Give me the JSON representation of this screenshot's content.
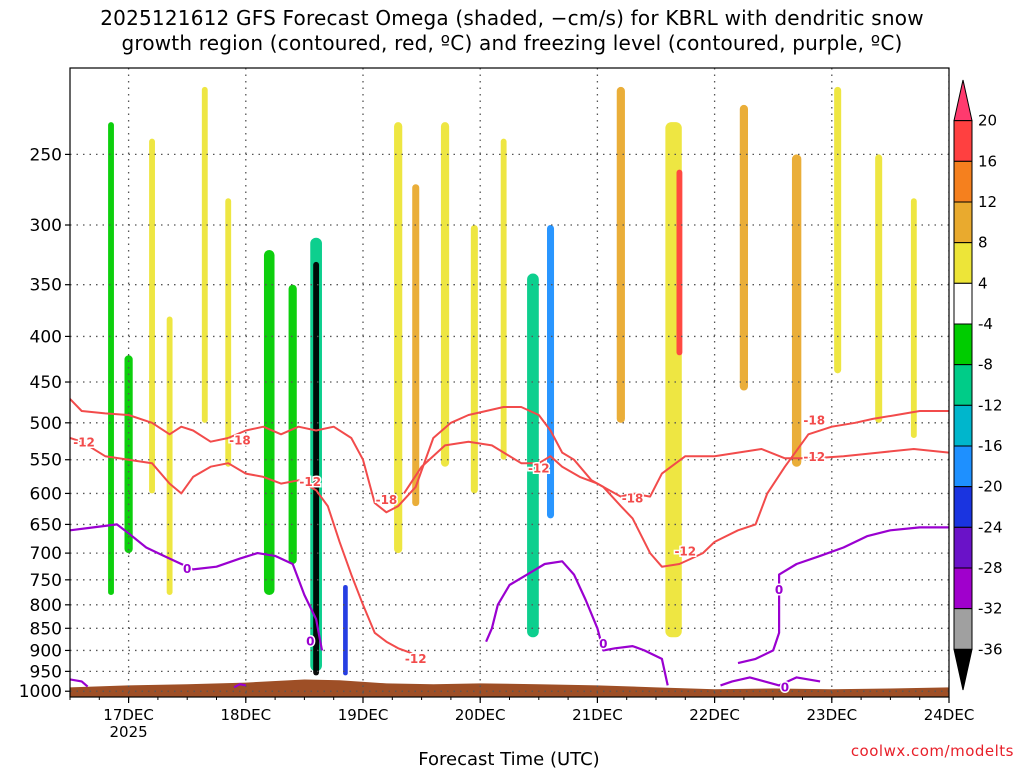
{
  "title_line1": "2025121612 GFS Forecast Omega (shaded, −cm/s) for KBRL with dendritic snow",
  "title_line2": "growth region (contoured, red, ºC) and freezing level (contoured, purple, ºC)",
  "credit": "coolwx.com/modelts",
  "chart_data": {
    "type": "heatmap",
    "title": "2025121612 GFS Forecast Omega (shaded, −cm/s) for KBRL with dendritic snow growth region (contoured, red, ºC) and freezing level (contoured, purple, ºC)",
    "xlabel": "Forecast Time (UTC)",
    "ylabel": "",
    "x_ticks": [
      "17DEC",
      "18DEC",
      "19DEC",
      "20DEC",
      "21DEC",
      "22DEC",
      "23DEC",
      "24DEC"
    ],
    "x_year_label": "2025",
    "x_range_days": [
      16.5,
      24.0
    ],
    "y_ticks": [
      250,
      300,
      350,
      400,
      450,
      500,
      550,
      600,
      650,
      700,
      750,
      800,
      850,
      900,
      950,
      1000
    ],
    "y_range_hpa": [
      200,
      1015
    ],
    "y_scale": "pressure",
    "colorbar": {
      "labels": [
        "20",
        "16",
        "12",
        "8",
        "4",
        "-4",
        "-8",
        "-12",
        "-16",
        "-20",
        "-24",
        "-28",
        "-32",
        "-36"
      ],
      "colors": [
        "#ff3a6e",
        "#ff4040",
        "#f5801e",
        "#e9aa2e",
        "#ede538",
        "#ffffff",
        "#00cc00",
        "#00cc88",
        "#00b6cc",
        "#1e90ff",
        "#1a34e0",
        "#6a12c8",
        "#a000cc",
        "#a0a0a0",
        "#000000"
      ]
    },
    "contour_labels_red": [
      {
        "text": "-12",
        "x": 16.62,
        "p": 525
      },
      {
        "text": "-18",
        "x": 17.95,
        "p": 522
      },
      {
        "text": "-12",
        "x": 18.55,
        "p": 581
      },
      {
        "text": "-18",
        "x": 19.2,
        "p": 609
      },
      {
        "text": "-12",
        "x": 19.45,
        "p": 918
      },
      {
        "text": "-12",
        "x": 20.5,
        "p": 561
      },
      {
        "text": "-18",
        "x": 21.3,
        "p": 606
      },
      {
        "text": "-12",
        "x": 21.75,
        "p": 695
      },
      {
        "text": "-18",
        "x": 22.85,
        "p": 496
      },
      {
        "text": "-12",
        "x": 22.85,
        "p": 545
      }
    ],
    "contour_labels_purple": [
      {
        "text": "0",
        "x": 17.5,
        "p": 727
      },
      {
        "text": "0",
        "x": 18.55,
        "p": 877
      },
      {
        "text": "0",
        "x": 21.05,
        "p": 883
      },
      {
        "text": "0",
        "x": 22.55,
        "p": 768
      },
      {
        "text": "0",
        "x": 22.6,
        "p": 988
      }
    ],
    "red_contours": [
      [
        [
          16.5,
          470
        ],
        [
          16.6,
          485
        ],
        [
          16.8,
          488
        ],
        [
          17.0,
          490
        ],
        [
          17.2,
          500
        ],
        [
          17.35,
          515
        ],
        [
          17.45,
          505
        ],
        [
          17.55,
          510
        ],
        [
          17.7,
          525
        ],
        [
          17.85,
          520
        ],
        [
          18.0,
          510
        ],
        [
          18.15,
          505
        ],
        [
          18.3,
          515
        ],
        [
          18.45,
          505
        ],
        [
          18.6,
          510
        ],
        [
          18.75,
          505
        ],
        [
          18.9,
          520
        ],
        [
          19.0,
          550
        ],
        [
          19.1,
          615
        ],
        [
          19.2,
          630
        ],
        [
          19.3,
          620
        ],
        [
          19.45,
          590
        ],
        [
          19.6,
          520
        ],
        [
          19.75,
          500
        ],
        [
          19.9,
          490
        ],
        [
          20.05,
          485
        ],
        [
          20.2,
          480
        ],
        [
          20.35,
          480
        ],
        [
          20.5,
          490
        ],
        [
          20.6,
          510
        ],
        [
          20.7,
          540
        ],
        [
          20.8,
          550
        ],
        [
          20.95,
          580
        ],
        [
          21.05,
          590
        ],
        [
          21.2,
          620
        ],
        [
          21.3,
          640
        ],
        [
          21.45,
          700
        ],
        [
          21.55,
          725
        ],
        [
          21.7,
          720
        ],
        [
          21.8,
          710
        ],
        [
          21.9,
          700
        ],
        [
          22.0,
          680
        ],
        [
          22.2,
          660
        ],
        [
          22.35,
          650
        ],
        [
          22.45,
          600
        ],
        [
          22.6,
          560
        ],
        [
          22.8,
          515
        ],
        [
          23.0,
          505
        ],
        [
          23.2,
          500
        ],
        [
          23.35,
          495
        ],
        [
          23.55,
          490
        ],
        [
          23.75,
          485
        ],
        [
          24.0,
          485
        ]
      ],
      [
        [
          16.5,
          520
        ],
        [
          16.6,
          525
        ],
        [
          16.8,
          545
        ],
        [
          17.0,
          550
        ],
        [
          17.2,
          555
        ],
        [
          17.35,
          585
        ],
        [
          17.45,
          600
        ],
        [
          17.55,
          575
        ],
        [
          17.7,
          560
        ],
        [
          17.85,
          555
        ],
        [
          18.0,
          570
        ],
        [
          18.15,
          575
        ],
        [
          18.3,
          585
        ],
        [
          18.45,
          580
        ],
        [
          18.6,
          595
        ],
        [
          18.7,
          620
        ],
        [
          18.8,
          680
        ],
        [
          18.9,
          740
        ],
        [
          19.0,
          800
        ],
        [
          19.1,
          860
        ],
        [
          19.2,
          880
        ],
        [
          19.3,
          895
        ],
        [
          19.45,
          910
        ]
      ],
      [
        [
          19.35,
          600
        ],
        [
          19.5,
          560
        ],
        [
          19.7,
          530
        ],
        [
          19.9,
          525
        ],
        [
          20.1,
          530
        ],
        [
          20.35,
          555
        ],
        [
          20.5,
          555
        ],
        [
          20.6,
          545
        ],
        [
          20.7,
          560
        ],
        [
          20.85,
          575
        ],
        [
          21.0,
          585
        ],
        [
          21.2,
          605
        ],
        [
          21.3,
          600
        ],
        [
          21.45,
          605
        ],
        [
          21.55,
          570
        ],
        [
          21.75,
          545
        ],
        [
          22.0,
          545
        ],
        [
          22.2,
          540
        ],
        [
          22.4,
          535
        ],
        [
          22.6,
          548
        ],
        [
          22.85,
          548
        ],
        [
          23.1,
          545
        ],
        [
          23.4,
          540
        ],
        [
          23.7,
          535
        ],
        [
          24.0,
          540
        ]
      ]
    ],
    "purple_contours": [
      [
        [
          16.5,
          660
        ],
        [
          16.7,
          655
        ],
        [
          16.9,
          650
        ],
        [
          17.0,
          665
        ],
        [
          17.15,
          690
        ],
        [
          17.3,
          705
        ],
        [
          17.45,
          720
        ],
        [
          17.55,
          730
        ],
        [
          17.75,
          725
        ],
        [
          17.95,
          710
        ],
        [
          18.1,
          700
        ],
        [
          18.25,
          705
        ],
        [
          18.4,
          720
        ],
        [
          18.5,
          780
        ],
        [
          18.6,
          830
        ],
        [
          18.65,
          900
        ]
      ],
      [
        [
          20.05,
          880
        ],
        [
          20.1,
          850
        ],
        [
          20.15,
          800
        ],
        [
          20.25,
          760
        ],
        [
          20.4,
          740
        ],
        [
          20.55,
          720
        ],
        [
          20.7,
          715
        ],
        [
          20.8,
          740
        ],
        [
          20.9,
          790
        ],
        [
          21.0,
          850
        ],
        [
          21.05,
          900
        ],
        [
          21.15,
          895
        ],
        [
          21.3,
          890
        ],
        [
          21.4,
          900
        ],
        [
          21.55,
          920
        ],
        [
          21.6,
          985
        ]
      ],
      [
        [
          22.05,
          985
        ],
        [
          22.15,
          975
        ],
        [
          22.3,
          965
        ],
        [
          22.55,
          985
        ],
        [
          22.7,
          965
        ],
        [
          22.9,
          975
        ]
      ],
      [
        [
          22.2,
          930
        ],
        [
          22.35,
          920
        ],
        [
          22.5,
          900
        ],
        [
          22.55,
          860
        ],
        [
          22.55,
          790
        ],
        [
          22.55,
          740
        ],
        [
          22.7,
          720
        ],
        [
          22.9,
          705
        ],
        [
          23.1,
          690
        ],
        [
          23.3,
          670
        ],
        [
          23.5,
          660
        ],
        [
          23.75,
          655
        ],
        [
          24.0,
          655
        ]
      ],
      [
        [
          16.5,
          970
        ],
        [
          16.6,
          975
        ],
        [
          16.65,
          988
        ]
      ],
      [
        [
          17.9,
          990
        ],
        [
          17.95,
          982
        ],
        [
          18.0,
          985
        ]
      ]
    ],
    "omega_patches": [
      {
        "x": 16.85,
        "p0": 230,
        "p1": 780,
        "value": -6,
        "w": 0.05
      },
      {
        "x": 17.0,
        "p0": 420,
        "p1": 700,
        "value": -6,
        "w": 0.07
      },
      {
        "x": 17.2,
        "p0": 240,
        "p1": 600,
        "value": 6,
        "w": 0.05
      },
      {
        "x": 17.35,
        "p0": 380,
        "p1": 780,
        "value": 6,
        "w": 0.05
      },
      {
        "x": 17.65,
        "p0": 210,
        "p1": 500,
        "value": 6,
        "w": 0.05
      },
      {
        "x": 17.85,
        "p0": 280,
        "p1": 560,
        "value": 6,
        "w": 0.05
      },
      {
        "x": 18.2,
        "p0": 320,
        "p1": 780,
        "value": -6,
        "w": 0.09
      },
      {
        "x": 18.4,
        "p0": 350,
        "p1": 720,
        "value": -6,
        "w": 0.07
      },
      {
        "x": 18.6,
        "p0": 310,
        "p1": 950,
        "value": -10,
        "w": 0.1
      },
      {
        "x": 18.6,
        "p0": 330,
        "p1": 960,
        "value": -40,
        "w": 0.05
      },
      {
        "x": 18.85,
        "p0": 760,
        "p1": 960,
        "value": -20,
        "w": 0.04
      },
      {
        "x": 19.3,
        "p0": 230,
        "p1": 700,
        "value": 6,
        "w": 0.07
      },
      {
        "x": 19.45,
        "p0": 270,
        "p1": 620,
        "value": 10,
        "w": 0.06
      },
      {
        "x": 19.7,
        "p0": 230,
        "p1": 560,
        "value": 6,
        "w": 0.07
      },
      {
        "x": 19.95,
        "p0": 300,
        "p1": 600,
        "value": 6,
        "w": 0.06
      },
      {
        "x": 20.2,
        "p0": 240,
        "p1": 550,
        "value": 6,
        "w": 0.05
      },
      {
        "x": 20.45,
        "p0": 340,
        "p1": 870,
        "value": -8,
        "w": 0.1
      },
      {
        "x": 20.6,
        "p0": 300,
        "p1": 640,
        "value": -16,
        "w": 0.06
      },
      {
        "x": 21.2,
        "p0": 210,
        "p1": 500,
        "value": 8,
        "w": 0.07
      },
      {
        "x": 21.65,
        "p0": 230,
        "p1": 870,
        "value": 6,
        "w": 0.14
      },
      {
        "x": 21.7,
        "p0": 260,
        "p1": 420,
        "value": 18,
        "w": 0.05
      },
      {
        "x": 22.25,
        "p0": 220,
        "p1": 460,
        "value": 8,
        "w": 0.07
      },
      {
        "x": 22.7,
        "p0": 250,
        "p1": 560,
        "value": 8,
        "w": 0.08
      },
      {
        "x": 23.05,
        "p0": 210,
        "p1": 440,
        "value": 6,
        "w": 0.06
      },
      {
        "x": 23.4,
        "p0": 250,
        "p1": 500,
        "value": 6,
        "w": 0.06
      },
      {
        "x": 23.7,
        "p0": 280,
        "p1": 520,
        "value": 6,
        "w": 0.05
      }
    ]
  }
}
